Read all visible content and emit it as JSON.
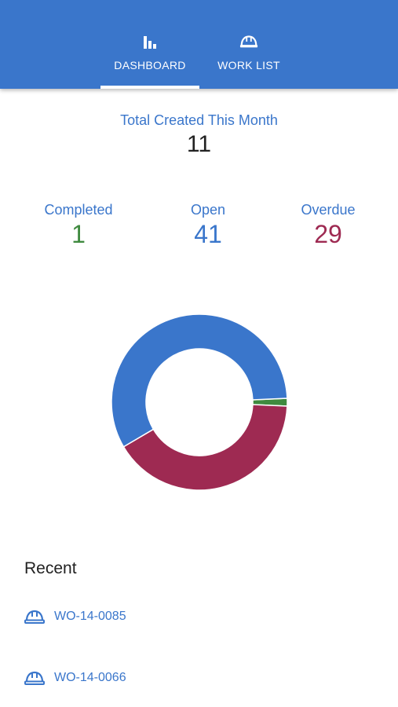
{
  "tabs": [
    {
      "label": "DASHBOARD",
      "icon": "bar-chart-icon",
      "active": true
    },
    {
      "label": "WORK LIST",
      "icon": "hard-hat-icon",
      "active": false
    }
  ],
  "summary": {
    "label": "Total Created This Month",
    "value": "11"
  },
  "stats": {
    "completed": {
      "label": "Completed",
      "value": "1",
      "color": "#3f8a3f"
    },
    "open": {
      "label": "Open",
      "value": "41",
      "color": "#3a76cb"
    },
    "overdue": {
      "label": "Overdue",
      "value": "29",
      "color": "#9e2a52"
    }
  },
  "chart_data": {
    "type": "pie",
    "categories": [
      "Completed",
      "Open",
      "Overdue"
    ],
    "values": [
      1,
      41,
      29
    ],
    "colors": [
      "#3f8a3f",
      "#3a76cb",
      "#9e2a52"
    ],
    "donut": true
  },
  "recent": {
    "title": "Recent",
    "items": [
      {
        "label": "WO-14-0085",
        "icon": "hard-hat-icon"
      },
      {
        "label": "WO-14-0066",
        "icon": "hard-hat-icon"
      }
    ]
  },
  "colors": {
    "primary": "#3a76cb",
    "completed": "#3f8a3f",
    "overdue": "#9e2a52"
  }
}
